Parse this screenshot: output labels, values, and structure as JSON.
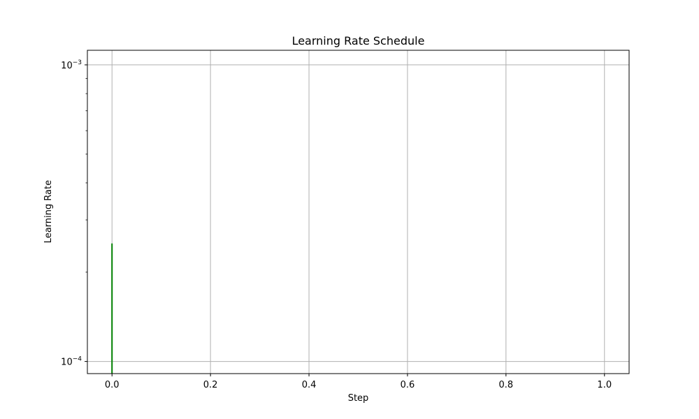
{
  "colors": {
    "series": "#008000",
    "grid": "#b0b0b0",
    "axes": "#000000",
    "background": "#ffffff"
  },
  "chart_data": {
    "type": "line",
    "title": "Learning Rate Schedule",
    "xlabel": "Step",
    "ylabel": "Learning Rate",
    "xscale": "linear",
    "yscale": "log",
    "xlim": [
      -0.05,
      1.05
    ],
    "ylim": [
      9.1e-05,
      0.00112
    ],
    "grid": true,
    "legend": "none",
    "x_ticks": [
      {
        "value": 0.0,
        "label": "0.0"
      },
      {
        "value": 0.2,
        "label": "0.2"
      },
      {
        "value": 0.4,
        "label": "0.4"
      },
      {
        "value": 0.6,
        "label": "0.6"
      },
      {
        "value": 0.8,
        "label": "0.8"
      },
      {
        "value": 1.0,
        "label": "1.0"
      }
    ],
    "y_ticks": [
      {
        "value": 0.001,
        "base": "10",
        "exponent": "−3"
      },
      {
        "value": 0.0001,
        "base": "10",
        "exponent": "−4"
      }
    ],
    "y_minor_ticks": [
      0.0002,
      0.0003,
      0.0004,
      0.0005,
      0.0006,
      0.0007,
      0.0008,
      0.0009
    ],
    "series": [
      {
        "x": [
          0,
          0
        ],
        "y": [
          0.00025,
          9.1e-05
        ]
      }
    ]
  }
}
